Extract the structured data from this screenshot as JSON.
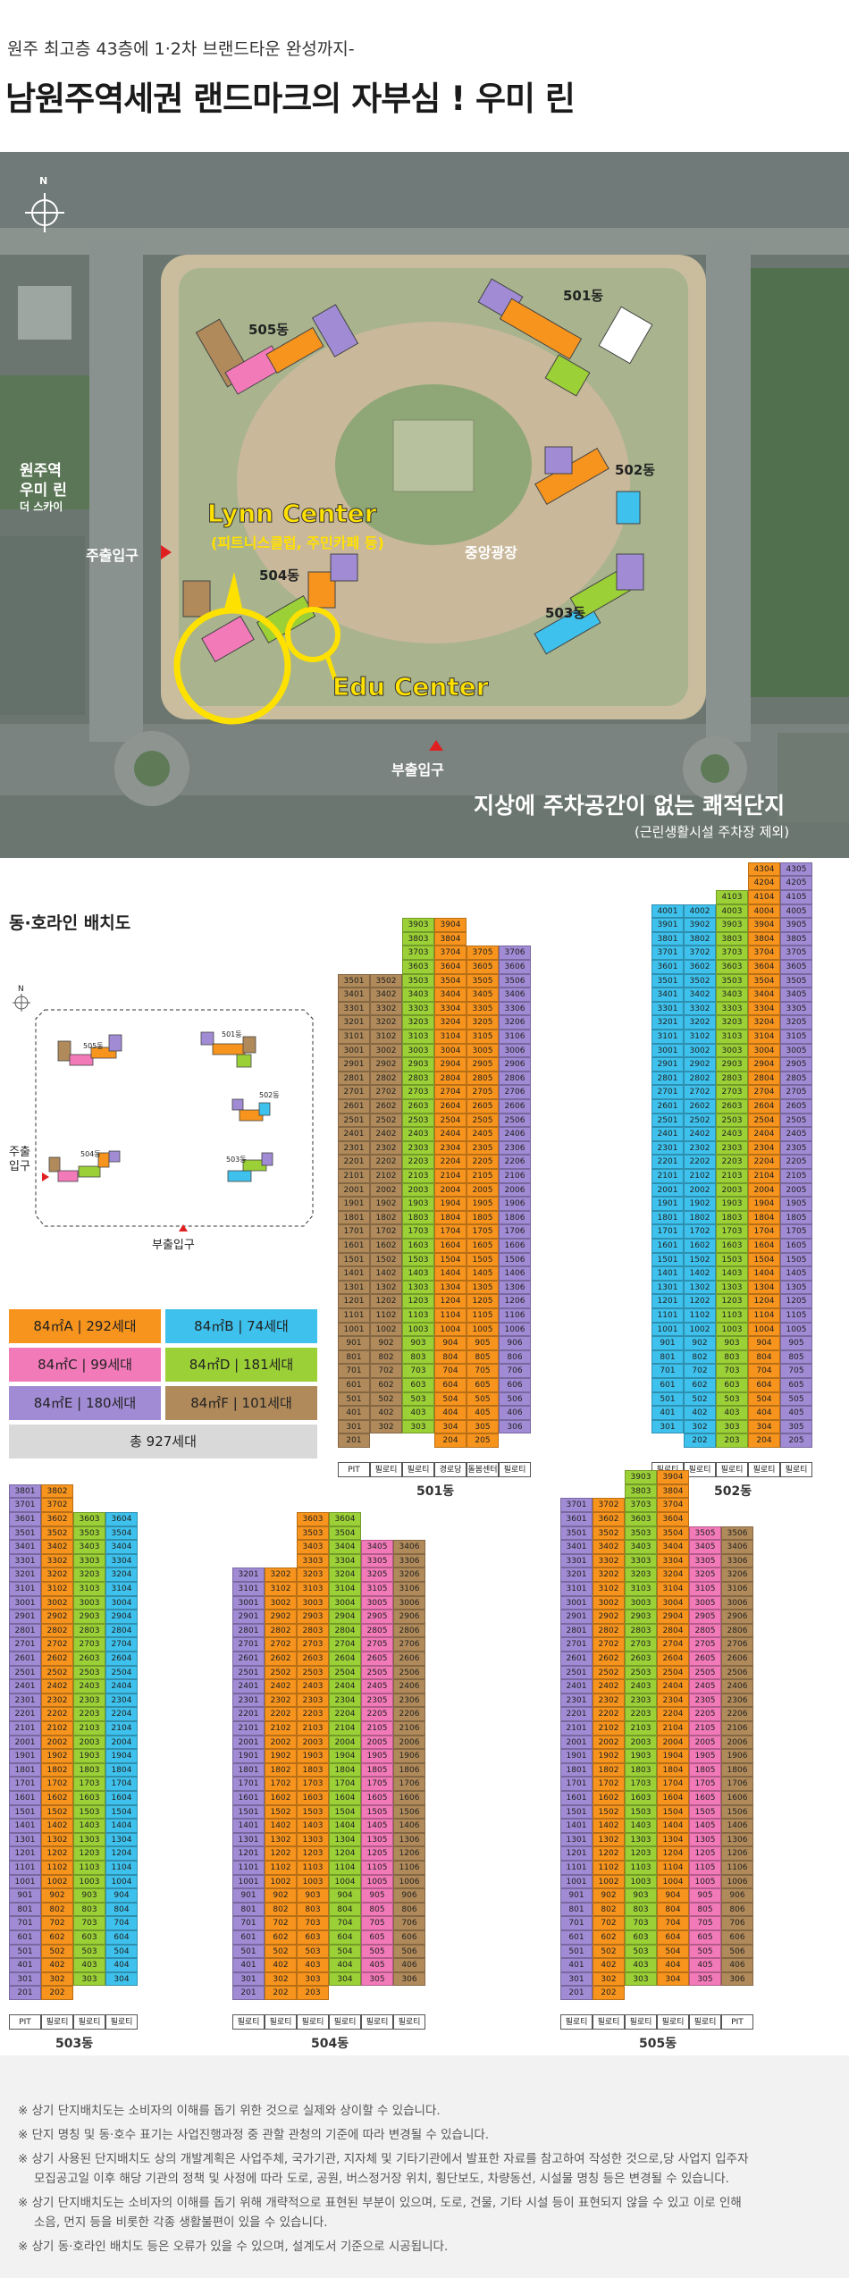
{
  "header": {
    "subtitle": "원주 최고층 43층에 1·2차 브랜드타운 완성까지-",
    "title": "남원주역세권 랜드마크의 자부심 ! 우미 린"
  },
  "hero": {
    "labels": {
      "b505": "505동",
      "b501": "501동",
      "b502": "502동",
      "b503": "503동",
      "b504": "504동",
      "station_l1": "원주역",
      "station_l2": "우미 린",
      "station_l3": "더 스카이",
      "main_gate": "주출입구",
      "sub_gate": "부출입구",
      "lynn": "Lynn Center",
      "lynn_sub": "(피트니스클럽, 주민카페 등)",
      "edu": "Edu Center",
      "plaza": "중앙광장",
      "banner": "지상에 주차공간이 없는 쾌적단지",
      "banner_sub": "(근린생활시설 주차장 제외)",
      "north": "N"
    }
  },
  "layout_section": {
    "title": "동·호라인 배치도",
    "map_labels": {
      "b505": "505동",
      "b501": "501동",
      "b502": "502동",
      "b503": "503동",
      "b504": "504동",
      "main_gate_1": "주출",
      "main_gate_2": "입구",
      "sub_gate": "부출입구",
      "north": "N"
    },
    "legend": [
      {
        "label": "84㎡A | 292세대",
        "color": "#f7941d"
      },
      {
        "label": "84㎡B | 74세대",
        "color": "#3ec1ec"
      },
      {
        "label": "84㎡C | 99세대",
        "color": "#f27ab9"
      },
      {
        "label": "84㎡D | 181세대",
        "color": "#9bd036"
      },
      {
        "label": "84㎡E | 180세대",
        "color": "#a08bd4"
      },
      {
        "label": "84㎡F | 101세대",
        "color": "#b08a5a"
      }
    ],
    "total": "총 927세대"
  },
  "colors": {
    "A": "#f7941d",
    "B": "#3ec1ec",
    "C": "#f27ab9",
    "D": "#9bd036",
    "E": "#a08bd4",
    "F": "#b08a5a"
  },
  "buildings": [
    {
      "name": "501동",
      "columns": [
        {
          "line": "01",
          "type": "F",
          "top": 35,
          "bottom": 2,
          "foot": "PIT"
        },
        {
          "line": "02",
          "type": "F",
          "top": 35,
          "bottom": 3,
          "foot": "필로티"
        },
        {
          "line": "03",
          "type": "D",
          "top": 39,
          "bottom": 3,
          "foot": "필로티"
        },
        {
          "line": "04",
          "type": "A",
          "top": 39,
          "bottom": 2,
          "foot": "경로당"
        },
        {
          "line": "05",
          "type": "A",
          "top": 37,
          "bottom": 2,
          "foot": "돌봄센터"
        },
        {
          "line": "06",
          "type": "E",
          "top": 37,
          "bottom": 3,
          "foot": "필로티"
        }
      ]
    },
    {
      "name": "502동",
      "columns": [
        {
          "line": "01",
          "type": "B",
          "top": 40,
          "bottom": 3,
          "foot": "필로티"
        },
        {
          "line": "02",
          "type": "B",
          "top": 40,
          "bottom": 2,
          "foot": "필로티"
        },
        {
          "line": "03",
          "type": "D",
          "top": 41,
          "bottom": 2,
          "foot": "필로티"
        },
        {
          "line": "04",
          "type": "A",
          "top": 43,
          "bottom": 2,
          "foot": "필로티"
        },
        {
          "line": "05",
          "type": "E",
          "top": 43,
          "bottom": 2,
          "foot": "필로티"
        }
      ]
    },
    {
      "name": "503동",
      "columns": [
        {
          "line": "01",
          "type": "E",
          "top": 38,
          "bottom": 2,
          "foot": "PIT"
        },
        {
          "line": "02",
          "type": "A",
          "top": 38,
          "bottom": 2,
          "foot": "필로티"
        },
        {
          "line": "03",
          "type": "D",
          "top": 36,
          "bottom": 3,
          "foot": "필로티"
        },
        {
          "line": "04",
          "type": "B",
          "top": 36,
          "bottom": 3,
          "foot": "필로티"
        }
      ]
    },
    {
      "name": "504동",
      "columns": [
        {
          "line": "01",
          "type": "E",
          "top": 32,
          "bottom": 2,
          "foot": "필로티"
        },
        {
          "line": "02",
          "type": "A",
          "top": 32,
          "bottom": 2,
          "foot": "필로티"
        },
        {
          "line": "03",
          "type": "A",
          "top": 36,
          "bottom": 2,
          "foot": "필로티"
        },
        {
          "line": "04",
          "type": "D",
          "top": 36,
          "bottom": 3,
          "foot": "필로티"
        },
        {
          "line": "05",
          "type": "C",
          "top": 34,
          "bottom": 3,
          "foot": "필로티"
        },
        {
          "line": "06",
          "type": "F",
          "top": 34,
          "bottom": 3,
          "foot": "필로티"
        }
      ]
    },
    {
      "name": "505동",
      "columns": [
        {
          "line": "01",
          "type": "E",
          "top": 37,
          "bottom": 2,
          "foot": "필로티"
        },
        {
          "line": "02",
          "type": "A",
          "top": 37,
          "bottom": 2,
          "foot": "필로티"
        },
        {
          "line": "03",
          "type": "D",
          "top": 39,
          "bottom": 3,
          "foot": "필로티"
        },
        {
          "line": "04",
          "type": "A",
          "top": 39,
          "bottom": 3,
          "foot": "필로티"
        },
        {
          "line": "05",
          "type": "C",
          "top": 35,
          "bottom": 3,
          "foot": "필로티"
        },
        {
          "line": "06",
          "type": "F",
          "top": 35,
          "bottom": 3,
          "foot": "PIT"
        }
      ]
    }
  ],
  "notes": [
    "※ 상기 단지배치도는 소비자의 이해를 돕기 위한 것으로 실제와 상이할 수 있습니다.",
    "※ 단지 명칭 및 동·호수 표기는 사업진행과정 중 관할 관청의 기준에 따라 변경될 수 있습니다.",
    "※ 상기 사용된 단지배치도 상의 개발계획은 사업주체, 국가기관, 지자체 및 기타기관에서 발표한 자료를 참고하여 작성한 것으로,당 사업지 입주자",
    "모집공고일 이후 해당 기관의 정책 및 사정에 따라 도로, 공원, 버스정거장 위치, 횡단보도, 차량동선, 시설물 명칭 등은 변경될 수 있습니다.",
    "※ 상기 단지배치도는 소비자의 이해를 돕기 위해 개략적으로 표현된 부분이 있으며, 도로, 건물, 기타 시설 등이 표현되지 않을 수 있고 이로 인해",
    "소음, 먼지 등을 비롯한 각종 생활불편이 있을 수 있습니다.",
    "※ 상기 동·호라인 배치도 등은 오류가 있을 수 있으며, 설계도서 기준으로 시공됩니다."
  ]
}
